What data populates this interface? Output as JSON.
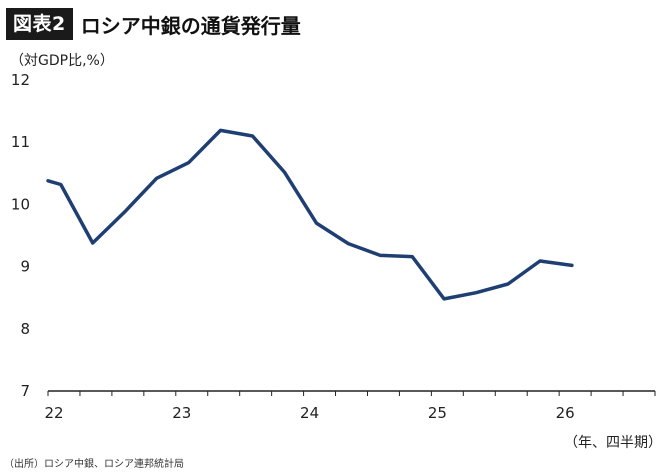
{
  "header": {
    "badge": "図表2",
    "title": "ロシア中銀の通貨発行量"
  },
  "footer": {
    "source": "（出所）ロシア中銀、ロシア連邦統計局"
  },
  "colors": {
    "line": "#1f3f73",
    "axis": "#222222",
    "badge_bg": "#1a1a1a"
  },
  "chart_data": {
    "type": "line",
    "title": "ロシア中銀の通貨発行量",
    "ylabel": "（対GDP比,%）",
    "xlabel": "（年、四半期）",
    "ylim": [
      7,
      12
    ],
    "yticks": [
      7,
      8,
      9,
      10,
      11,
      12
    ],
    "xlim": [
      2022.0,
      2026.75
    ],
    "xticks": [
      {
        "value": 2022,
        "label": "22"
      },
      {
        "value": 2023,
        "label": "23"
      },
      {
        "value": 2024,
        "label": "24"
      },
      {
        "value": 2025,
        "label": "25"
      },
      {
        "value": 2026,
        "label": "26"
      }
    ],
    "grid": false,
    "legend": "none",
    "series": [
      {
        "x": [
          2022.0,
          2022.1,
          2022.35,
          2022.6,
          2022.85,
          2023.1,
          2023.35,
          2023.6,
          2023.85,
          2024.1,
          2024.35,
          2024.6,
          2024.85,
          2025.1,
          2025.35,
          2025.6,
          2025.85,
          2026.1
        ],
        "values": [
          10.38,
          10.32,
          9.38,
          9.88,
          10.42,
          10.67,
          11.19,
          11.1,
          10.52,
          9.7,
          9.37,
          9.18,
          9.16,
          8.48,
          8.58,
          8.72,
          9.09,
          9.02
        ]
      }
    ]
  }
}
